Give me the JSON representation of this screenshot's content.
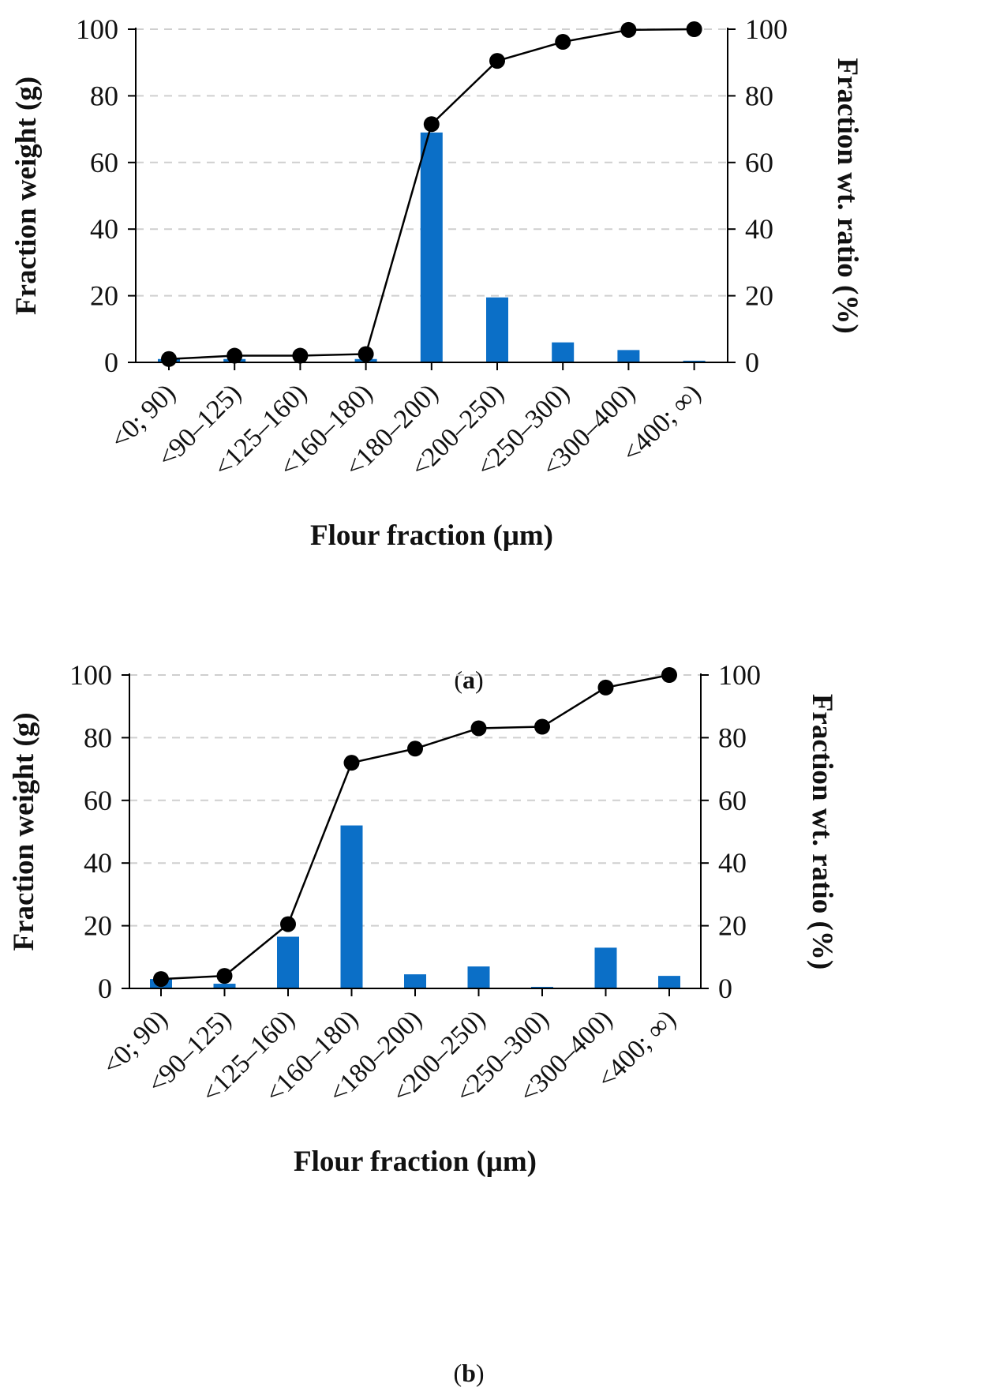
{
  "chart_data": [
    {
      "type": "bar",
      "panel_label": "a",
      "categories": [
        "<0; 90)",
        "<90–125)",
        "<125–160)",
        "<160–180)",
        "<180–200)",
        "<200–250)",
        "<250–300)",
        "<300–400)",
        "<400; ∞)"
      ],
      "series": [
        {
          "name": "Fraction weight (g)",
          "kind": "bar",
          "axis": "left",
          "color": "#0b6fc7",
          "values": [
            1,
            1,
            0,
            1,
            69,
            19.5,
            6,
            3.7,
            0.5
          ]
        },
        {
          "name": "Fraction wt. ratio (%)",
          "kind": "line",
          "axis": "right",
          "color": "#000000",
          "values": [
            1,
            2,
            2,
            2.5,
            71.5,
            90.5,
            96.2,
            99.8,
            100
          ]
        }
      ],
      "xlabel": "Flour fraction (μm)",
      "ylabel": "Fraction weight (g)",
      "y2label": "Fraction wt. ratio (%)",
      "ylim": [
        0,
        100
      ],
      "y2lim": [
        0,
        100
      ],
      "yticks": [
        "0",
        "20",
        "40",
        "60",
        "80",
        "100"
      ],
      "grid": "horizontal dashed"
    },
    {
      "type": "bar",
      "panel_label": "b",
      "categories": [
        "<0; 90)",
        "<90–125)",
        "<125–160)",
        "<160–180)",
        "<180–200)",
        "<200–250)",
        "<250–300)",
        "<300–400)",
        "<400; ∞)"
      ],
      "series": [
        {
          "name": "Fraction weight (g)",
          "kind": "bar",
          "axis": "left",
          "color": "#0b6fc7",
          "values": [
            3,
            1.5,
            16.5,
            52,
            4.5,
            7,
            0.5,
            13,
            4
          ]
        },
        {
          "name": "Fraction wt. ratio (%)",
          "kind": "line",
          "axis": "right",
          "color": "#000000",
          "values": [
            3,
            4,
            20.5,
            72,
            76.5,
            83,
            83.5,
            96,
            100
          ]
        }
      ],
      "xlabel": "Flour fraction (μm)",
      "ylabel": "Fraction weight (g)",
      "y2label": "Fraction wt. ratio (%)",
      "ylim": [
        0,
        100
      ],
      "y2lim": [
        0,
        100
      ],
      "yticks": [
        "0",
        "20",
        "40",
        "60",
        "80",
        "100"
      ],
      "grid": "horizontal dashed"
    }
  ],
  "captions": {
    "a": "a",
    "b": "b"
  },
  "colors": {
    "bar": "#0b6fc7",
    "line": "#000000",
    "grid": "#cfcfcf",
    "axis": "#000000"
  }
}
